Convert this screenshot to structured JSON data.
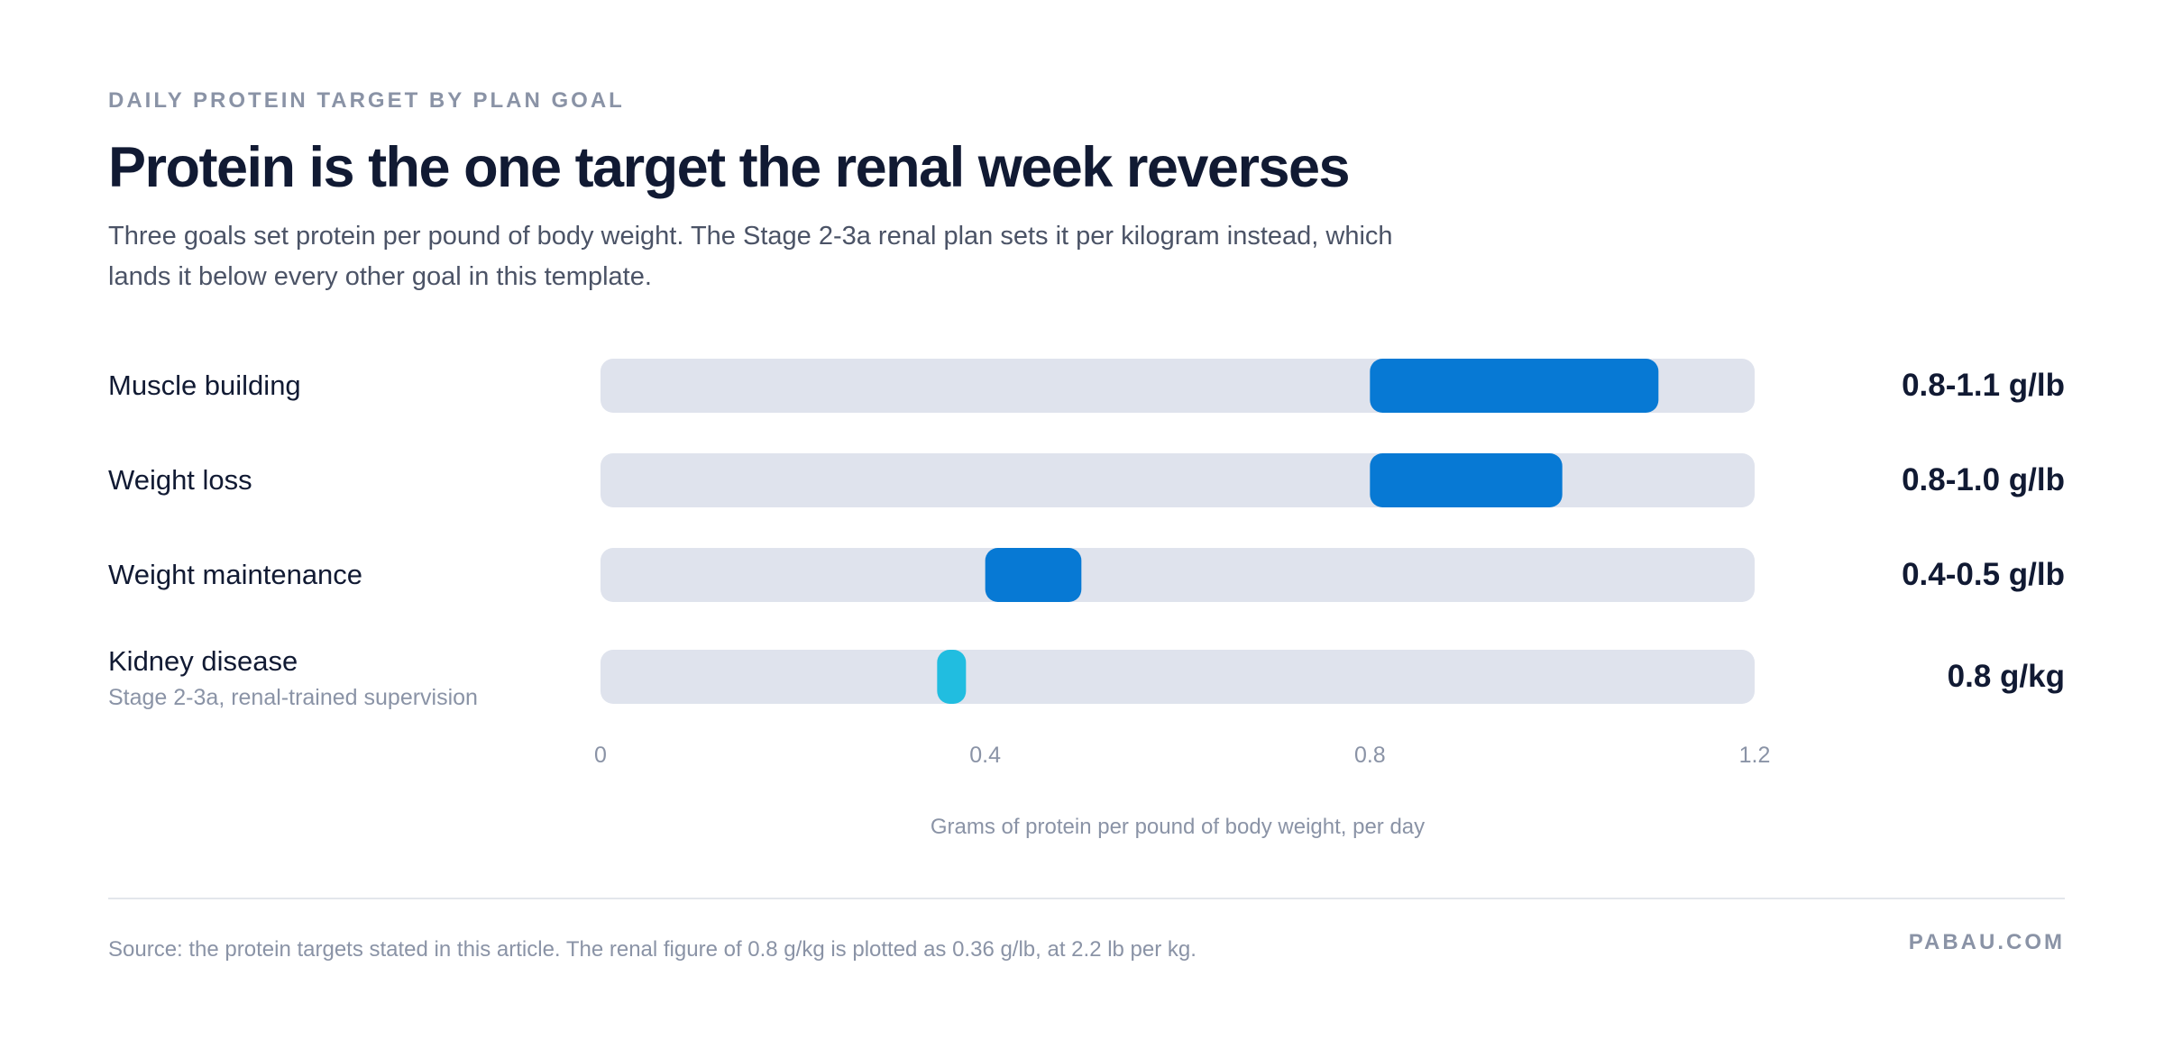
{
  "header": {
    "eyebrow": "DAILY PROTEIN TARGET BY PLAN GOAL",
    "title": "Protein is the one target the renal week reverses",
    "subtitle": "Three goals set protein per pound of body weight. The Stage 2-3a renal plan sets it per kilogram instead, which lands it below every other goal in this template."
  },
  "chart_data": {
    "type": "bar",
    "orientation": "horizontal-range",
    "xlabel": "Grams of protein per pound of body weight, per day",
    "xlim": [
      0,
      1.2
    ],
    "x_ticks": [
      "0",
      "0.4",
      "0.8",
      "1.2"
    ],
    "grid": false,
    "rows": [
      {
        "label": "Muscle building",
        "note": "",
        "min": 0.8,
        "max": 1.1,
        "value_label": "0.8-1.1 g/lb",
        "color": "#0779d4"
      },
      {
        "label": "Weight loss",
        "note": "",
        "min": 0.8,
        "max": 1.0,
        "value_label": "0.8-1.0 g/lb",
        "color": "#0779d4"
      },
      {
        "label": "Weight maintenance",
        "note": "",
        "min": 0.4,
        "max": 0.5,
        "value_label": "0.4-0.5 g/lb",
        "color": "#0779d4"
      },
      {
        "label": "Kidney disease",
        "note": "Stage 2-3a, renal-trained supervision",
        "min": 0.35,
        "max": 0.38,
        "value_label": "0.8 g/kg",
        "color": "#21bde0"
      }
    ],
    "track_color": "#dfe3ed"
  },
  "footer": {
    "source": "Source: the protein targets stated in this article. The renal figure of 0.8 g/kg is plotted as 0.36 g/lb, at 2.2 lb per kg.",
    "brand": "PABAU.COM"
  }
}
